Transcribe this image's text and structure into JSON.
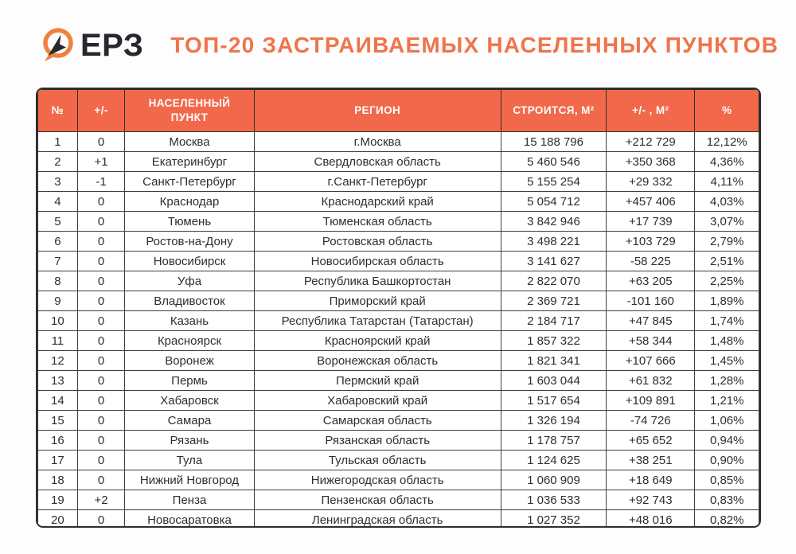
{
  "logo": {
    "text": "ЕРЗ",
    "icon": "erz-ring-cursor-icon"
  },
  "title": "ТОП-20 ЗАСТРАИВАЕМЫХ НАСЕЛЕННЫХ ПУНКТОВ",
  "colors": {
    "accent_orange": "#F2684A",
    "title_orange": "#F0744B",
    "logo_orange": "#EF8040",
    "logo_dark": "#26282D",
    "grid_dark": "#3D3D3D",
    "header_text": "#FFFFFF",
    "body_text": "#2E2E2E"
  },
  "chart_data": {
    "type": "table",
    "title": "ТОП-20 ЗАСТРАИВАЕМЫХ НАСЕЛЕННЫХ ПУНКТОВ",
    "columns": [
      "№",
      "+/-",
      "НАСЕЛЕННЫЙ ПУНКТ",
      "РЕГИОН",
      "СТРОИТСЯ, М²",
      "+/- , М²",
      "%"
    ],
    "column_keys": [
      "rank",
      "position-change",
      "settlement",
      "region",
      "area-under-construction",
      "area-change",
      "share-percent"
    ],
    "rows": [
      [
        "1",
        "0",
        "Москва",
        "г.Москва",
        "15 188 796",
        "+212 729",
        "12,12%"
      ],
      [
        "2",
        "+1",
        "Екатеринбург",
        "Свердловская область",
        "5 460 546",
        "+350 368",
        "4,36%"
      ],
      [
        "3",
        "-1",
        "Санкт-Петербург",
        "г.Санкт-Петербург",
        "5 155 254",
        "+29 332",
        "4,11%"
      ],
      [
        "4",
        "0",
        "Краснодар",
        "Краснодарский край",
        "5 054 712",
        "+457 406",
        "4,03%"
      ],
      [
        "5",
        "0",
        "Тюмень",
        "Тюменская область",
        "3 842 946",
        "+17 739",
        "3,07%"
      ],
      [
        "6",
        "0",
        "Ростов-на-Дону",
        "Ростовская область",
        "3 498 221",
        "+103 729",
        "2,79%"
      ],
      [
        "7",
        "0",
        "Новосибирск",
        "Новосибирская область",
        "3 141 627",
        "-58 225",
        "2,51%"
      ],
      [
        "8",
        "0",
        "Уфа",
        "Республика Башкортостан",
        "2 822 070",
        "+63 205",
        "2,25%"
      ],
      [
        "9",
        "0",
        "Владивосток",
        "Приморский край",
        "2 369 721",
        "-101 160",
        "1,89%"
      ],
      [
        "10",
        "0",
        "Казань",
        "Республика Татарстан (Татарстан)",
        "2 184 717",
        "+47 845",
        "1,74%"
      ],
      [
        "11",
        "0",
        "Красноярск",
        "Красноярский край",
        "1 857 322",
        "+58 344",
        "1,48%"
      ],
      [
        "12",
        "0",
        "Воронеж",
        "Воронежская область",
        "1 821 341",
        "+107 666",
        "1,45%"
      ],
      [
        "13",
        "0",
        "Пермь",
        "Пермский край",
        "1 603 044",
        "+61 832",
        "1,28%"
      ],
      [
        "14",
        "0",
        "Хабаровск",
        "Хабаровский край",
        "1 517 654",
        "+109 891",
        "1,21%"
      ],
      [
        "15",
        "0",
        "Самара",
        "Самарская область",
        "1 326 194",
        "-74 726",
        "1,06%"
      ],
      [
        "16",
        "0",
        "Рязань",
        "Рязанская область",
        "1 178 757",
        "+65 652",
        "0,94%"
      ],
      [
        "17",
        "0",
        "Тула",
        "Тульская область",
        "1 124 625",
        "+38 251",
        "0,90%"
      ],
      [
        "18",
        "0",
        "Нижний Новгород",
        "Нижегородская область",
        "1 060 909",
        "+18 649",
        "0,85%"
      ],
      [
        "19",
        "+2",
        "Пенза",
        "Пензенская область",
        "1 036 533",
        "+92 743",
        "0,83%"
      ],
      [
        "20",
        "0",
        "Новосаратовка",
        "Ленинградская область",
        "1 027 352",
        "+48 016",
        "0,82%"
      ]
    ]
  }
}
